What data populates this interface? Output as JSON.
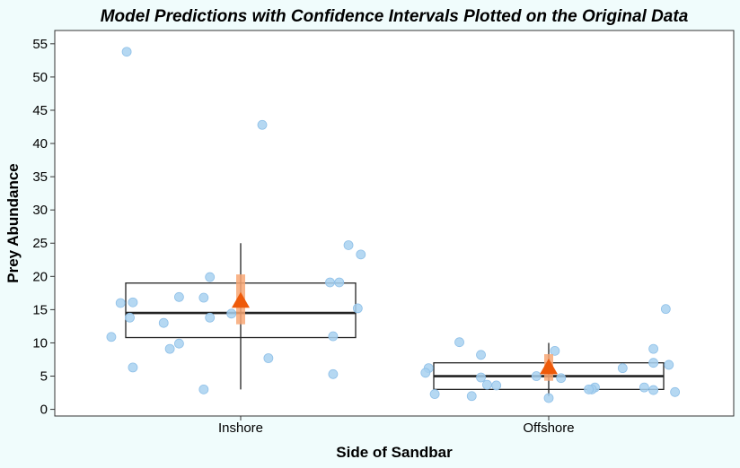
{
  "chart_data": {
    "type": "box",
    "title": "Model Predictions with Confidence Intervals Plotted on the Original Data",
    "xlabel": "Side of Sandbar",
    "ylabel": "Prey Abundance",
    "ylim": [
      -1,
      57
    ],
    "yticks": [
      0,
      5,
      10,
      15,
      20,
      25,
      30,
      35,
      40,
      45,
      50,
      55
    ],
    "categories": [
      "Inshore",
      "Offshore"
    ],
    "grid": false,
    "colors": {
      "points": "#a8d1f0",
      "points_stroke": "#8fc0e8",
      "prediction": "#ee5a0a",
      "ci": "#f8a774",
      "box": "#222222",
      "panel_bg": "#ffffff",
      "page_bg": "#f0fcfc"
    },
    "boxes": [
      {
        "category": "Inshore",
        "lower_whisker": 3,
        "q1": 10.8,
        "median": 14.5,
        "q3": 19,
        "upper_whisker": 25
      },
      {
        "category": "Offshore",
        "lower_whisker": 2,
        "q1": 3,
        "median": 5,
        "q3": 7,
        "upper_whisker": 10
      }
    ],
    "predictions": [
      {
        "category": "Inshore",
        "estimate": 16.3,
        "ci_low": 12.8,
        "ci_high": 20.3
      },
      {
        "category": "Offshore",
        "estimate": 6.3,
        "ci_low": 4.3,
        "ci_high": 8.3
      }
    ],
    "points": [
      {
        "category": "Inshore",
        "jitter": -0.37,
        "value": 53.8
      },
      {
        "category": "Inshore",
        "jitter": 0.07,
        "value": 42.8
      },
      {
        "category": "Inshore",
        "jitter": 0.35,
        "value": 24.7
      },
      {
        "category": "Inshore",
        "jitter": 0.39,
        "value": 23.3
      },
      {
        "category": "Inshore",
        "jitter": -0.1,
        "value": 19.9
      },
      {
        "category": "Inshore",
        "jitter": 0.32,
        "value": 19.1
      },
      {
        "category": "Inshore",
        "jitter": 0.29,
        "value": 19.1
      },
      {
        "category": "Inshore",
        "jitter": -0.2,
        "value": 16.9
      },
      {
        "category": "Inshore",
        "jitter": -0.12,
        "value": 16.8
      },
      {
        "category": "Inshore",
        "jitter": -0.35,
        "value": 16.1
      },
      {
        "category": "Inshore",
        "jitter": -0.39,
        "value": 16.0
      },
      {
        "category": "Inshore",
        "jitter": 0.38,
        "value": 15.2
      },
      {
        "category": "Inshore",
        "jitter": -0.03,
        "value": 14.4
      },
      {
        "category": "Inshore",
        "jitter": -0.1,
        "value": 13.8
      },
      {
        "category": "Inshore",
        "jitter": -0.36,
        "value": 13.8
      },
      {
        "category": "Inshore",
        "jitter": -0.25,
        "value": 13.0
      },
      {
        "category": "Inshore",
        "jitter": 0.3,
        "value": 11.0
      },
      {
        "category": "Inshore",
        "jitter": -0.42,
        "value": 10.9
      },
      {
        "category": "Inshore",
        "jitter": -0.2,
        "value": 9.9
      },
      {
        "category": "Inshore",
        "jitter": -0.23,
        "value": 9.1
      },
      {
        "category": "Inshore",
        "jitter": 0.09,
        "value": 7.7
      },
      {
        "category": "Inshore",
        "jitter": -0.35,
        "value": 6.3
      },
      {
        "category": "Inshore",
        "jitter": 0.3,
        "value": 5.3
      },
      {
        "category": "Inshore",
        "jitter": -0.12,
        "value": 3.0
      },
      {
        "category": "Offshore",
        "jitter": 0.38,
        "value": 15.1
      },
      {
        "category": "Offshore",
        "jitter": -0.29,
        "value": 10.1
      },
      {
        "category": "Offshore",
        "jitter": 0.34,
        "value": 9.1
      },
      {
        "category": "Offshore",
        "jitter": 0.02,
        "value": 8.8
      },
      {
        "category": "Offshore",
        "jitter": -0.22,
        "value": 8.2
      },
      {
        "category": "Offshore",
        "jitter": 0.34,
        "value": 7.0
      },
      {
        "category": "Offshore",
        "jitter": 0.39,
        "value": 6.7
      },
      {
        "category": "Offshore",
        "jitter": 0.24,
        "value": 6.2
      },
      {
        "category": "Offshore",
        "jitter": -0.39,
        "value": 6.2
      },
      {
        "category": "Offshore",
        "jitter": -0.4,
        "value": 5.5
      },
      {
        "category": "Offshore",
        "jitter": -0.04,
        "value": 5.0
      },
      {
        "category": "Offshore",
        "jitter": -0.22,
        "value": 4.8
      },
      {
        "category": "Offshore",
        "jitter": 0.04,
        "value": 4.7
      },
      {
        "category": "Offshore",
        "jitter": -0.2,
        "value": 3.7
      },
      {
        "category": "Offshore",
        "jitter": -0.17,
        "value": 3.6
      },
      {
        "category": "Offshore",
        "jitter": 0.31,
        "value": 3.3
      },
      {
        "category": "Offshore",
        "jitter": 0.15,
        "value": 3.3
      },
      {
        "category": "Offshore",
        "jitter": 0.14,
        "value": 3.0
      },
      {
        "category": "Offshore",
        "jitter": 0.13,
        "value": 3.0
      },
      {
        "category": "Offshore",
        "jitter": 0.34,
        "value": 2.9
      },
      {
        "category": "Offshore",
        "jitter": 0.41,
        "value": 2.6
      },
      {
        "category": "Offshore",
        "jitter": -0.37,
        "value": 2.3
      },
      {
        "category": "Offshore",
        "jitter": -0.25,
        "value": 2.0
      },
      {
        "category": "Offshore",
        "jitter": 0.0,
        "value": 1.7
      }
    ]
  }
}
